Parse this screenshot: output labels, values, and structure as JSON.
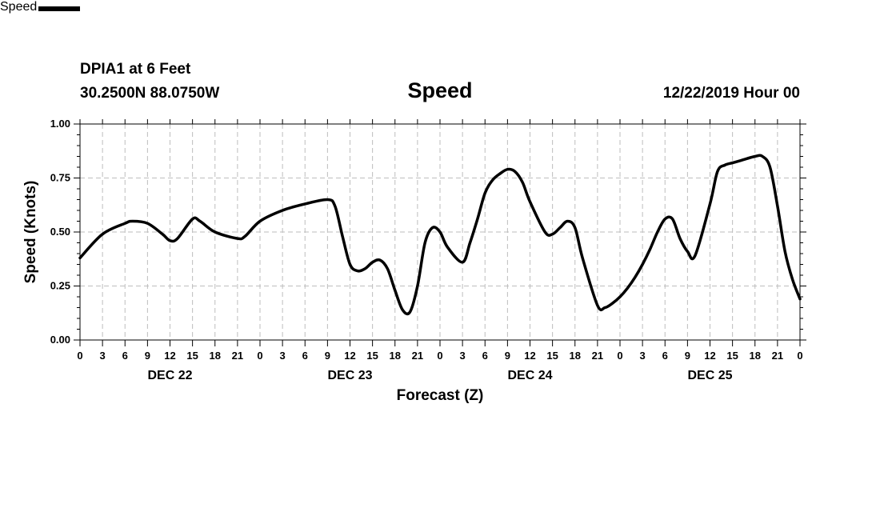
{
  "header": {
    "station": "DPIA1 at 6 Feet",
    "coords": "30.2500N 88.0750W",
    "title": "Speed",
    "stamp": "12/22/2019 Hour 00"
  },
  "legend": {
    "label": "Speed"
  },
  "chart_data": {
    "type": "line",
    "title": "Speed",
    "xlabel": "Forecast (Z)",
    "ylabel": "Speed (Knots)",
    "xlim": [
      0,
      96
    ],
    "ylim": [
      0,
      1
    ],
    "grid": true,
    "legend": "bottom-left",
    "ytick_labels": [
      "0.00",
      "0.25",
      "0.50",
      "0.75",
      "1.00"
    ],
    "ytick_values": [
      0,
      0.25,
      0.5,
      0.75,
      1.0
    ],
    "xtick_labels": [
      "0",
      "3",
      "6",
      "9",
      "12",
      "15",
      "18",
      "21",
      "0",
      "3",
      "6",
      "9",
      "12",
      "15",
      "18",
      "21",
      "0",
      "3",
      "6",
      "9",
      "12",
      "15",
      "18",
      "21",
      "0",
      "3",
      "6",
      "9",
      "12",
      "15",
      "18",
      "21",
      "0"
    ],
    "day_labels": [
      "DEC 22",
      "DEC 23",
      "DEC 24",
      "DEC 25"
    ],
    "series": [
      {
        "name": "Speed",
        "color": "#000000",
        "x": [
          0,
          3,
          6,
          7,
          9,
          11,
          12,
          13,
          15,
          16,
          18,
          21,
          22,
          24,
          27,
          30,
          33,
          34,
          35,
          36,
          37,
          38,
          39,
          40,
          41,
          42,
          43,
          44,
          45,
          46,
          47,
          48,
          49,
          51,
          52,
          53,
          54,
          55,
          56,
          57,
          58,
          59,
          60,
          62,
          63,
          64,
          65,
          66,
          67,
          69,
          70,
          71,
          72,
          73,
          74,
          75,
          76,
          77,
          78,
          79,
          80,
          81,
          82,
          84,
          85,
          86,
          87,
          88,
          90,
          91,
          92,
          93,
          94,
          95,
          96
        ],
        "y": [
          0.38,
          0.49,
          0.54,
          0.55,
          0.54,
          0.49,
          0.46,
          0.47,
          0.56,
          0.55,
          0.5,
          0.47,
          0.48,
          0.55,
          0.6,
          0.63,
          0.65,
          0.62,
          0.48,
          0.35,
          0.32,
          0.33,
          0.36,
          0.37,
          0.33,
          0.23,
          0.14,
          0.13,
          0.25,
          0.45,
          0.52,
          0.5,
          0.43,
          0.36,
          0.45,
          0.56,
          0.68,
          0.74,
          0.77,
          0.79,
          0.78,
          0.73,
          0.64,
          0.5,
          0.49,
          0.52,
          0.55,
          0.52,
          0.38,
          0.16,
          0.15,
          0.17,
          0.2,
          0.24,
          0.29,
          0.35,
          0.42,
          0.5,
          0.56,
          0.56,
          0.47,
          0.41,
          0.39,
          0.63,
          0.78,
          0.81,
          0.82,
          0.83,
          0.85,
          0.85,
          0.8,
          0.62,
          0.41,
          0.28,
          0.19
        ]
      }
    ]
  }
}
